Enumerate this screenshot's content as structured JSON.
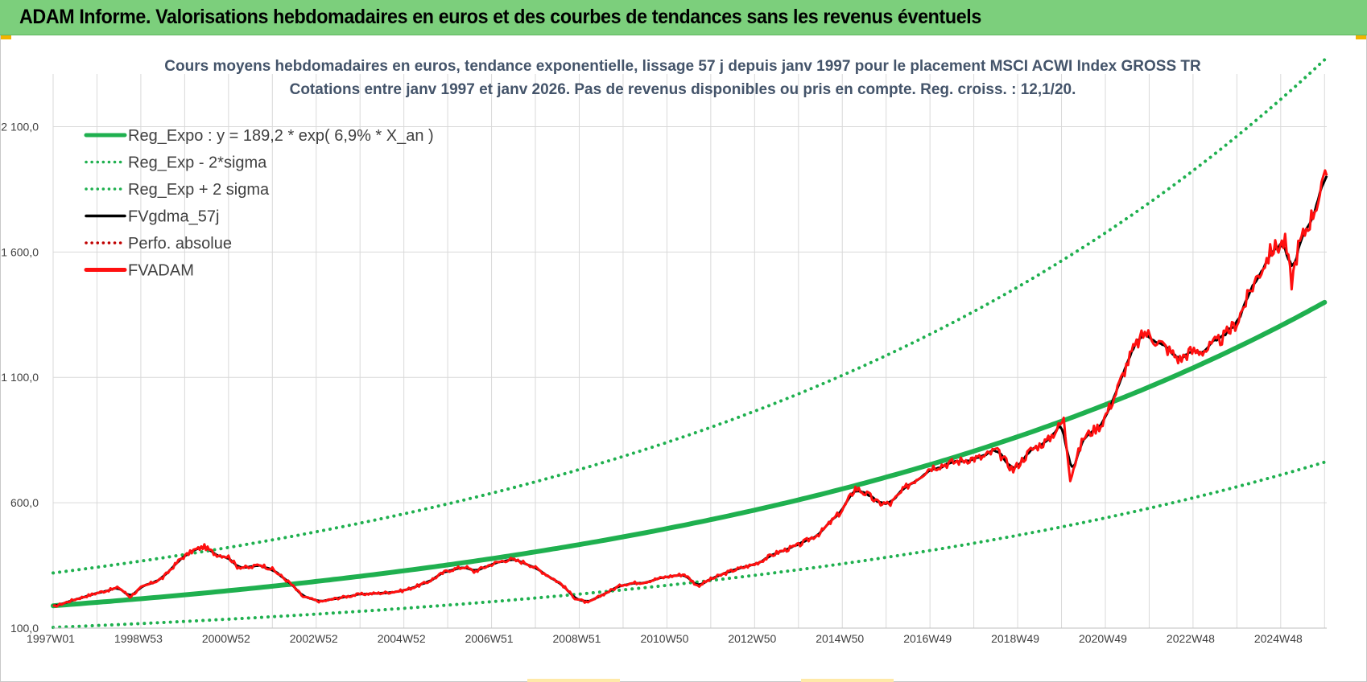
{
  "header": {
    "title": "ADAM Informe. Valorisations hebdomadaires en euros et des courbes de tendances sans les revenus éventuels"
  },
  "colors": {
    "banner": "#7ccf7c",
    "regression": "#1fb04f",
    "sigma": "#1fb04f",
    "smoothed": "#000000",
    "absolute": "#c00000",
    "fvadam": "#ff1010",
    "grid": "#d9d9d9",
    "text": "#44546a"
  },
  "chart_data": {
    "type": "line",
    "title": "Cours moyens hebdomadaires en euros, tendance exponentielle, lissage 57 j depuis janv 1997  pour le placement MSCI ACWI Index GROSS TR",
    "subtitle": "Cotations entre janv 1997 et janv 2026. Pas de revenus disponibles ou pris en compte. Reg. croiss. : 12,1/20.",
    "xlabel": "",
    "ylabel": "",
    "x_ticks": [
      "1997W01",
      "1998W53",
      "2000W52",
      "2002W52",
      "2004W52",
      "2006W51",
      "2008W51",
      "2010W50",
      "2012W50",
      "2014W50",
      "2016W49",
      "2018W49",
      "2020W49",
      "2022W48",
      "2024W48"
    ],
    "x_range_years": [
      1997.0,
      2026.05
    ],
    "y_ticks": [
      "100,0",
      "600,0",
      "1 100,0",
      "1 600,0",
      "2 100,0"
    ],
    "y_tick_values": [
      100,
      600,
      1100,
      1600,
      2100
    ],
    "ylim": [
      100,
      2310
    ],
    "grid": true,
    "legend_position": "top-left",
    "legend": [
      {
        "label": "Reg_Expo : y = 189,2 * exp( 6,9% *  X_an )",
        "style": "solid-thick",
        "color": "#1fb04f"
      },
      {
        "label": "Reg_Exp - 2*sigma",
        "style": "dotted",
        "color": "#1fb04f"
      },
      {
        "label": "Reg_Exp + 2 sigma",
        "style": "dotted",
        "color": "#1fb04f"
      },
      {
        "label": "FVgdma_57j",
        "style": "solid",
        "color": "#000000"
      },
      {
        "label": "Perfo. absolue",
        "style": "dotted",
        "color": "#c00000"
      },
      {
        "label": "FVADAM",
        "style": "solid-thick",
        "color": "#ff1010"
      }
    ],
    "series": [
      {
        "name": "Reg_Expo : y = 189,2 * exp( 6,9% *  X_an )",
        "kind": "exp",
        "a": 189.2,
        "r": 0.069
      },
      {
        "name": "Reg_Exp - 2*sigma",
        "kind": "exp",
        "a": 103,
        "r": 0.069
      },
      {
        "name": "Reg_Exp + 2 sigma",
        "kind": "exp",
        "a": 320,
        "r": 0.069
      },
      {
        "name": "FVADAM",
        "points": [
          [
            1997.0,
            185
          ],
          [
            1997.5,
            215
          ],
          [
            1998.0,
            240
          ],
          [
            1998.5,
            262
          ],
          [
            1998.75,
            225
          ],
          [
            1999.0,
            260
          ],
          [
            1999.5,
            300
          ],
          [
            1999.9,
            375
          ],
          [
            2000.2,
            410
          ],
          [
            2000.45,
            425
          ],
          [
            2000.7,
            395
          ],
          [
            2001.0,
            385
          ],
          [
            2001.2,
            345
          ],
          [
            2001.5,
            340
          ],
          [
            2001.7,
            355
          ],
          [
            2002.0,
            335
          ],
          [
            2002.4,
            280
          ],
          [
            2002.7,
            225
          ],
          [
            2003.1,
            205
          ],
          [
            2003.5,
            220
          ],
          [
            2004.0,
            235
          ],
          [
            2004.5,
            240
          ],
          [
            2005.0,
            250
          ],
          [
            2005.5,
            280
          ],
          [
            2006.0,
            330
          ],
          [
            2006.4,
            345
          ],
          [
            2006.6,
            325
          ],
          [
            2007.0,
            355
          ],
          [
            2007.4,
            375
          ],
          [
            2007.8,
            360
          ],
          [
            2008.2,
            320
          ],
          [
            2008.6,
            275
          ],
          [
            2008.9,
            220
          ],
          [
            2009.2,
            200
          ],
          [
            2009.6,
            240
          ],
          [
            2010.0,
            275
          ],
          [
            2010.5,
            285
          ],
          [
            2011.0,
            305
          ],
          [
            2011.4,
            315
          ],
          [
            2011.7,
            268
          ],
          [
            2012.0,
            295
          ],
          [
            2012.5,
            330
          ],
          [
            2013.0,
            355
          ],
          [
            2013.5,
            400
          ],
          [
            2014.0,
            430
          ],
          [
            2014.5,
            480
          ],
          [
            2015.0,
            570
          ],
          [
            2015.3,
            660
          ],
          [
            2015.6,
            630
          ],
          [
            2015.8,
            600
          ],
          [
            2016.1,
            595
          ],
          [
            2016.5,
            670
          ],
          [
            2017.0,
            740
          ],
          [
            2017.5,
            760
          ],
          [
            2017.9,
            775
          ],
          [
            2018.2,
            780
          ],
          [
            2018.5,
            810
          ],
          [
            2018.9,
            730
          ],
          [
            2019.3,
            810
          ],
          [
            2019.7,
            850
          ],
          [
            2020.05,
            930
          ],
          [
            2020.2,
            700
          ],
          [
            2020.5,
            860
          ],
          [
            2020.9,
            910
          ],
          [
            2021.2,
            1020
          ],
          [
            2021.6,
            1200
          ],
          [
            2021.9,
            1280
          ],
          [
            2022.3,
            1230
          ],
          [
            2022.7,
            1170
          ],
          [
            2022.9,
            1200
          ],
          [
            2023.3,
            1210
          ],
          [
            2023.7,
            1260
          ],
          [
            2024.0,
            1320
          ],
          [
            2024.4,
            1480
          ],
          [
            2024.8,
            1610
          ],
          [
            2025.1,
            1640
          ],
          [
            2025.25,
            1480
          ],
          [
            2025.4,
            1620
          ],
          [
            2025.7,
            1740
          ],
          [
            2026.05,
            1905
          ]
        ]
      }
    ]
  }
}
